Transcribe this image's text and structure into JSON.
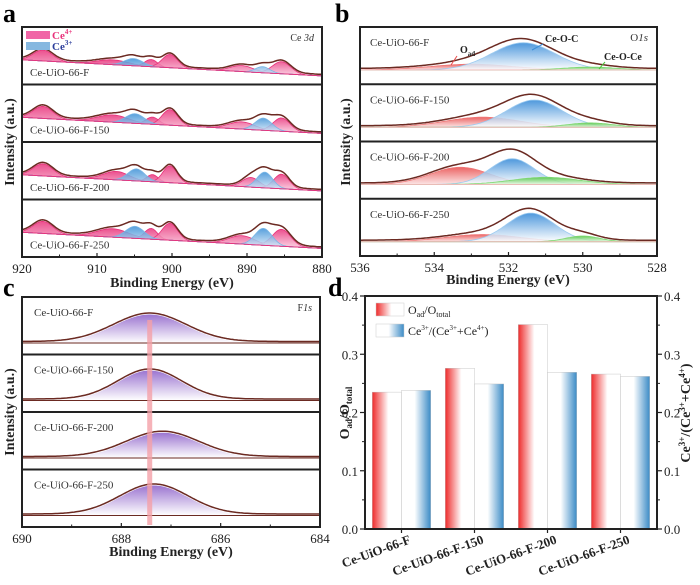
{
  "figure": {
    "panels": [
      "a",
      "b",
      "c",
      "d"
    ],
    "colors": {
      "ce4": "#e8317a",
      "ce3": "#4a9ad6",
      "envelope": "#6b2a22",
      "oad": "#e84a4a",
      "ceoc": "#3c8fd9",
      "ceoce": "#4cc43c",
      "f1s": "#8a5cc8",
      "marker_line": "#f4a0a8",
      "bar_red": "#ee2b2b",
      "bar_blue": "#3b8bc6"
    }
  },
  "chart_data": [
    {
      "panel": "a",
      "type": "line",
      "title": "Ce 3d",
      "xlabel": "Binding Energy (eV)",
      "ylabel": "Intensity (a.u.)",
      "xlim": [
        920,
        877
      ],
      "xticks": [
        "920",
        "910",
        "900",
        "890",
        "880"
      ],
      "legend": [
        {
          "label": "Ce",
          "sup": "4+",
          "color": "#e8317a"
        },
        {
          "label": "Ce",
          "sup": "3+",
          "color": "#4a9ad6"
        }
      ],
      "legend_position": "top-left",
      "series": [
        {
          "name": "Ce-UiO-66-F",
          "peaks_ce4": [
            {
              "center": 917,
              "height": 0.45,
              "width": 1.4
            },
            {
              "center": 907,
              "height": 0.2,
              "width": 2.2
            },
            {
              "center": 901.5,
              "height": 0.3,
              "width": 0.9
            },
            {
              "center": 898.8,
              "height": 0.55,
              "width": 1.1
            },
            {
              "center": 888.5,
              "height": 0.25,
              "width": 1.6
            },
            {
              "center": 882.8,
              "height": 0.5,
              "width": 1.3
            }
          ],
          "peaks_ce3": [
            {
              "center": 904,
              "height": 0.3,
              "width": 1.3
            },
            {
              "center": 885.5,
              "height": 0.25,
              "width": 1.0
            }
          ]
        },
        {
          "name": "Ce-UiO-66-F-150",
          "peaks_ce4": [
            {
              "center": 917,
              "height": 0.5,
              "width": 1.4
            },
            {
              "center": 907,
              "height": 0.3,
              "width": 2.2
            },
            {
              "center": 901.3,
              "height": 0.3,
              "width": 0.9
            },
            {
              "center": 898.8,
              "height": 0.65,
              "width": 1.1
            },
            {
              "center": 888.5,
              "height": 0.3,
              "width": 1.8
            },
            {
              "center": 882.8,
              "height": 0.55,
              "width": 1.2
            }
          ],
          "peaks_ce3": [
            {
              "center": 903.8,
              "height": 0.4,
              "width": 1.3
            },
            {
              "center": 885.4,
              "height": 0.5,
              "width": 1.2
            }
          ]
        },
        {
          "name": "Ce-UiO-66-F-200",
          "peaks_ce4": [
            {
              "center": 917,
              "height": 0.5,
              "width": 1.4
            },
            {
              "center": 906.5,
              "height": 0.35,
              "width": 1.8
            },
            {
              "center": 901.3,
              "height": 0.3,
              "width": 0.8
            },
            {
              "center": 898.8,
              "height": 0.7,
              "width": 1.0
            },
            {
              "center": 887.2,
              "height": 0.4,
              "width": 1.2
            },
            {
              "center": 882.8,
              "height": 0.6,
              "width": 1.1
            }
          ],
          "peaks_ce3": [
            {
              "center": 903.6,
              "height": 0.5,
              "width": 1.2
            },
            {
              "center": 885.2,
              "height": 0.65,
              "width": 1.1
            }
          ]
        },
        {
          "name": "Ce-UiO-66-F-250",
          "peaks_ce4": [
            {
              "center": 917,
              "height": 0.5,
              "width": 1.4
            },
            {
              "center": 907,
              "height": 0.35,
              "width": 2.2
            },
            {
              "center": 901.5,
              "height": 0.45,
              "width": 0.9
            },
            {
              "center": 898.8,
              "height": 0.7,
              "width": 1.1
            },
            {
              "center": 888.5,
              "height": 0.35,
              "width": 1.8
            },
            {
              "center": 882.8,
              "height": 0.7,
              "width": 1.3
            }
          ],
          "peaks_ce3": [
            {
              "center": 903.8,
              "height": 0.5,
              "width": 1.3
            },
            {
              "center": 885.4,
              "height": 0.7,
              "width": 1.2
            }
          ]
        }
      ]
    },
    {
      "panel": "b",
      "type": "line",
      "title": "O1s",
      "xlabel": "Binding Energy (eV)",
      "ylabel": "Intensity (a.u.)",
      "xlim": [
        536,
        528
      ],
      "xticks": [
        "536",
        "534",
        "532",
        "530",
        "528"
      ],
      "annotations": [
        {
          "text": "O",
          "sub": "ad"
        },
        {
          "text": "Ce-O-C"
        },
        {
          "text": "Ce-O-Ce"
        }
      ],
      "series": [
        {
          "name": "Ce-UiO-66-F",
          "oad": {
            "center": 533.0,
            "height": 0.2,
            "width": 1.1
          },
          "ceoc": {
            "center": 531.6,
            "height": 0.95,
            "width": 0.85
          },
          "ceoce": {
            "center": 529.8,
            "height": 0.1,
            "width": 0.7
          }
        },
        {
          "name": "Ce-UiO-66-F-150",
          "oad": {
            "center": 532.7,
            "height": 0.35,
            "width": 1.0
          },
          "ceoc": {
            "center": 531.3,
            "height": 0.95,
            "width": 0.75
          },
          "ceoce": {
            "center": 529.8,
            "height": 0.15,
            "width": 0.6
          }
        },
        {
          "name": "Ce-UiO-66-F-200",
          "oad": {
            "center": 533.3,
            "height": 0.6,
            "width": 0.8
          },
          "ceoc": {
            "center": 531.9,
            "height": 0.9,
            "width": 0.6
          },
          "ceoce": {
            "center": 531.0,
            "height": 0.25,
            "width": 0.9
          }
        },
        {
          "name": "Ce-UiO-66-F-250",
          "oad": {
            "center": 532.7,
            "height": 0.25,
            "width": 1.0
          },
          "ceoc": {
            "center": 531.4,
            "height": 1.0,
            "width": 0.65
          },
          "ceoce": {
            "center": 530.0,
            "height": 0.2,
            "width": 0.45
          }
        }
      ]
    },
    {
      "panel": "c",
      "type": "line",
      "title": "F1s",
      "xlabel": "Binding Energy (eV)",
      "ylabel": "Intensity (a.u.)",
      "xlim": [
        690,
        683
      ],
      "xticks": [
        "690",
        "688",
        "686",
        "684"
      ],
      "marker_line_x": 687.0,
      "series": [
        {
          "name": "Ce-UiO-66-F",
          "peak": {
            "center": 687.0,
            "height": 0.9,
            "width": 0.85
          }
        },
        {
          "name": "Ce-UiO-66-F-150",
          "peak": {
            "center": 687.0,
            "height": 0.95,
            "width": 0.75
          }
        },
        {
          "name": "Ce-UiO-66-F-200",
          "peak": {
            "center": 686.7,
            "height": 0.8,
            "width": 0.85
          }
        },
        {
          "name": "Ce-UiO-66-F-250",
          "peak": {
            "center": 686.9,
            "height": 0.95,
            "width": 0.8
          }
        }
      ]
    },
    {
      "panel": "d",
      "type": "bar",
      "categories": [
        "Ce-UiO-66-F",
        "Ce-UiO-66-F-150",
        "Ce-UiO-66-F-200",
        "Ce-UiO-66-F-250"
      ],
      "series": [
        {
          "name": "Oad/Ototal",
          "label_main": "O",
          "label_sub1": "ad",
          "label_mid": "/O",
          "label_sub2": "total",
          "values": [
            0.235,
            0.276,
            0.351,
            0.266
          ]
        },
        {
          "name": "Ce3+/(Ce3+ + Ce4+)",
          "label_main": "Ce",
          "label_sup1": "3+",
          "label_mid": "/(Ce",
          "label_sup2": "3+",
          "label_mid2": "+Ce",
          "label_sup3": "4+",
          "label_end": ")",
          "values": [
            0.238,
            0.249,
            0.269,
            0.262
          ]
        }
      ],
      "ylabel_left": "Oad/Ototal",
      "ylabel_right": "Ce3+/(Ce3+ +Ce4+)",
      "ylim": [
        0.0,
        0.4
      ],
      "yticks": [
        "0.0",
        "0.1",
        "0.2",
        "0.3",
        "0.4"
      ],
      "legend_position": "top-left"
    }
  ],
  "labels": {
    "binding_energy": "Binding Energy (eV)",
    "intensity": "Intensity (a.u.)",
    "ce3d_prefix": "Ce ",
    "ce3d_suffix": "3d",
    "o1s_prefix": "O",
    "o1s_suffix": "1s",
    "f1s_prefix": "F",
    "f1s_suffix": "1s",
    "ceoc": "Ce-O-C",
    "ceoce": "Ce-O-Ce",
    "oad_main": "O",
    "oad_sub": "ad"
  }
}
